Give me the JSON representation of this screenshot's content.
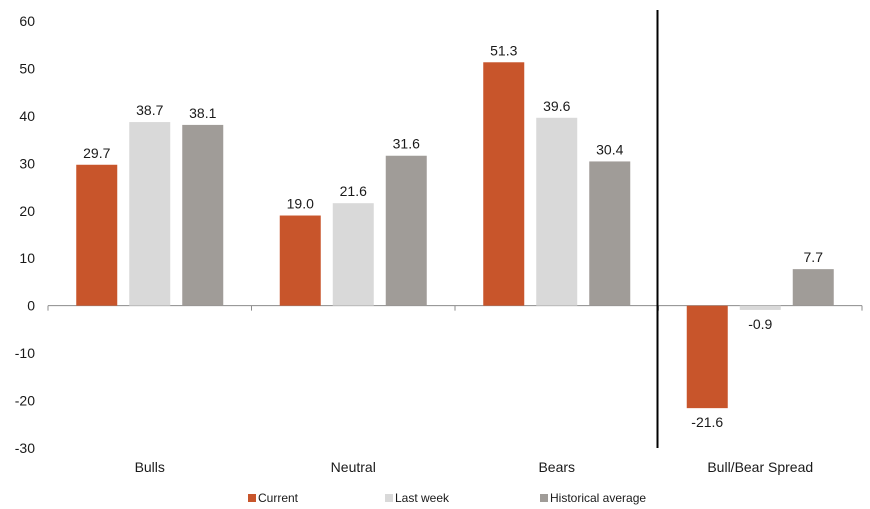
{
  "chart_data": {
    "type": "bar",
    "categories": [
      "Bulls",
      "Neutral",
      "Bears",
      "Bull/Bear Spread"
    ],
    "series": [
      {
        "name": "Current",
        "color": "#c8552b",
        "values": [
          29.7,
          19.0,
          51.3,
          -21.6
        ],
        "labels": [
          "29.7",
          "19.0",
          "51.3",
          "-21.6"
        ]
      },
      {
        "name": "Last week",
        "color": "#d9d9d9",
        "values": [
          38.7,
          21.6,
          39.6,
          -0.9
        ],
        "labels": [
          "38.7",
          "21.6",
          "39.6",
          "-0.9"
        ]
      },
      {
        "name": "Historical average",
        "color": "#a09c98",
        "values": [
          38.1,
          31.6,
          30.4,
          7.7
        ],
        "labels": [
          "38.1",
          "31.6",
          "30.4",
          "7.7"
        ]
      }
    ],
    "ylim": [
      -30,
      60
    ],
    "yticks": [
      60,
      50,
      40,
      30,
      20,
      10,
      0,
      -10,
      -20,
      -30
    ],
    "grid": false,
    "legend_position": "bottom",
    "separator_before_category": 3,
    "title": "",
    "xlabel": "",
    "ylabel": ""
  }
}
